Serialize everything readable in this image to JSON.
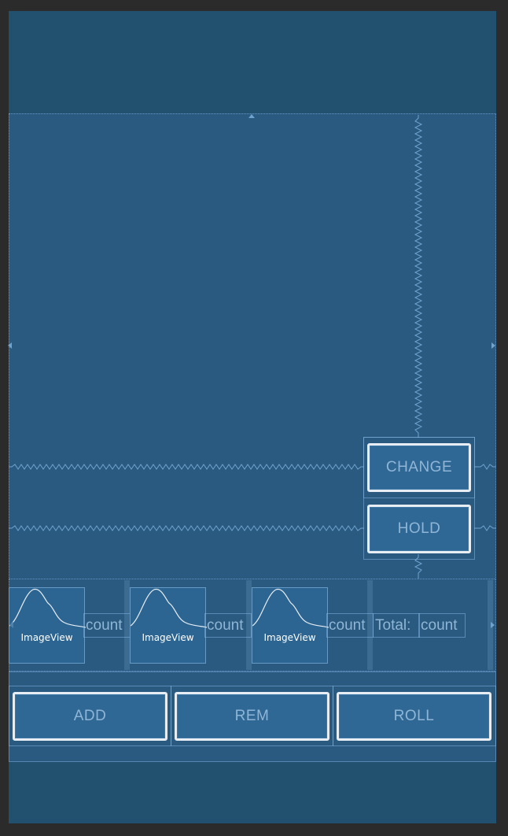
{
  "buttons": {
    "change": "CHANGE",
    "hold": "HOLD",
    "add": "ADD",
    "rem": "REM",
    "roll": "ROLL"
  },
  "dice": [
    {
      "image_label": "ImageView",
      "count_label": "count"
    },
    {
      "image_label": "ImageView",
      "count_label": "count"
    },
    {
      "image_label": "ImageView",
      "count_label": "count"
    }
  ],
  "total": {
    "label": "Total:",
    "count_label": "count"
  },
  "icons": {
    "image_placeholder": "image-placeholder-icon",
    "constraint_arrow": "arrow-icon"
  }
}
